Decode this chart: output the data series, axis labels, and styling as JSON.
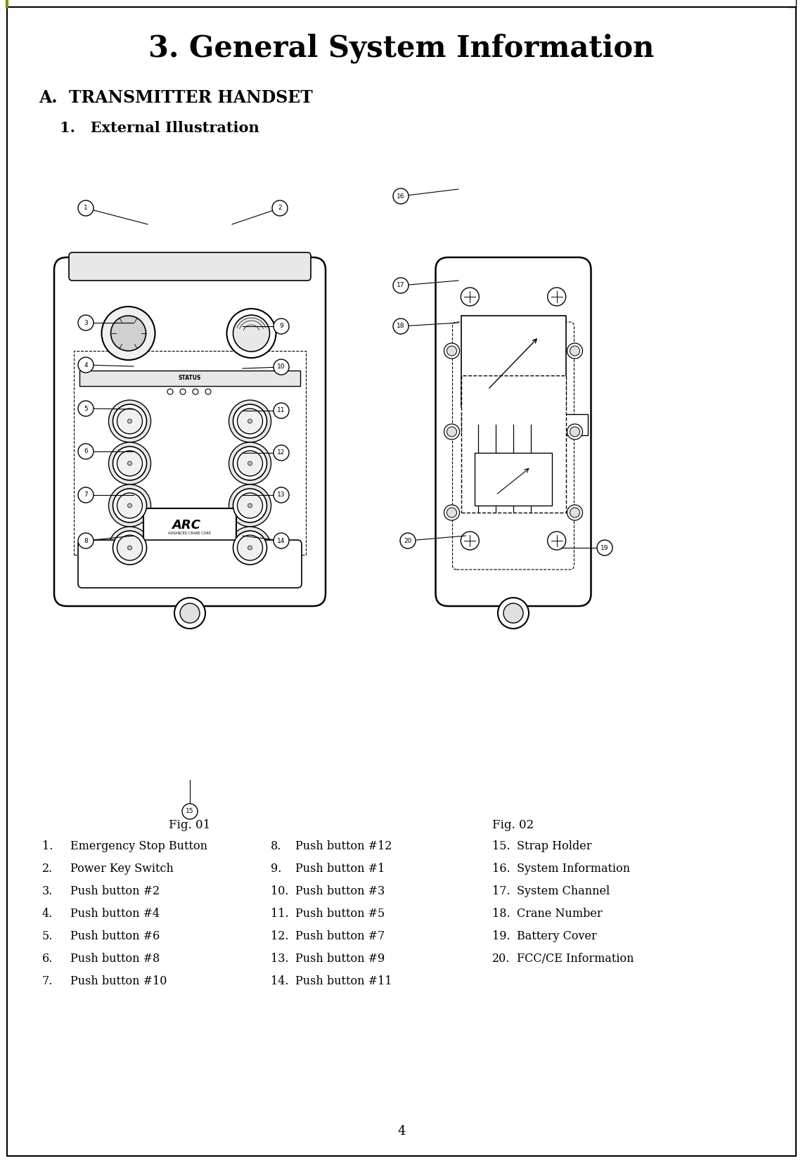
{
  "title": "3. General System Information",
  "section_a": "A.  TRANSMITTER HANDSET",
  "section_1": "1.   External Illustration",
  "fig01_label": "Fig. 01",
  "fig02_label": "Fig. 02",
  "page_number": "4",
  "list_col1": [
    [
      "1.",
      "Emergency Stop Button"
    ],
    [
      "2.",
      "Power Key Switch"
    ],
    [
      "3.",
      "Push button #2"
    ],
    [
      "4.",
      "Push button #4"
    ],
    [
      "5.",
      "Push button #6"
    ],
    [
      "6.",
      "Push button #8"
    ],
    [
      "7.",
      "Push button #10"
    ]
  ],
  "list_col2": [
    [
      "8.",
      "Push button #12"
    ],
    [
      "9.",
      "Push button #1"
    ],
    [
      "10.",
      "Push button #3"
    ],
    [
      "11.",
      "Push button #5"
    ],
    [
      "12.",
      "Push button #7"
    ],
    [
      "13.",
      "Push button #9"
    ],
    [
      "14.",
      "Push button #11"
    ]
  ],
  "list_col3": [
    [
      "15.",
      "Strap Holder"
    ],
    [
      "16.",
      "System Information"
    ],
    [
      "17.",
      "System Channel"
    ],
    [
      "18.",
      "Crane Number"
    ],
    [
      "19.",
      "Battery Cover"
    ],
    [
      "20.",
      "FCC/CE Information"
    ]
  ],
  "bg_color": "#ffffff",
  "text_color": "#000000",
  "border_color": "#000000"
}
